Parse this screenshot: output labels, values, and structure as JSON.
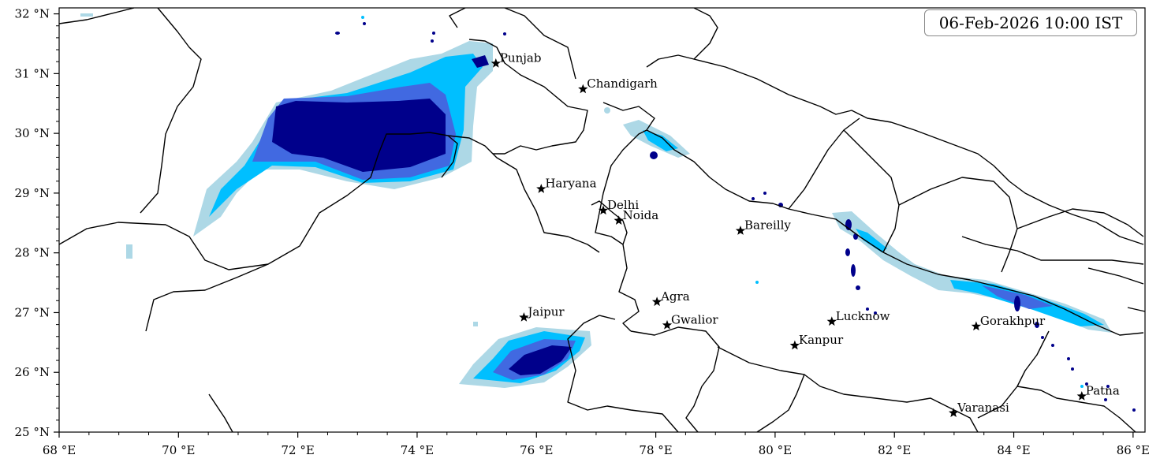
{
  "timestamp": "06-Feb-2026 10:00 IST",
  "axes": {
    "x_ticks": [
      "68 °E",
      "70 °E",
      "72 °E",
      "74 °E",
      "76 °E",
      "78 °E",
      "80 °E",
      "82 °E",
      "84 °E",
      "86 °E"
    ],
    "y_ticks": [
      "32 °N",
      "31 °N",
      "30 °N",
      "29 °N",
      "28 °N",
      "27 °N",
      "26 °N",
      "25 °N"
    ],
    "lon_range": [
      68,
      86.2
    ],
    "lat_range": [
      25,
      32.1
    ]
  },
  "cities": [
    {
      "name": "Punjab",
      "lon": 75.32,
      "lat": 31.17
    },
    {
      "name": "Chandigarh",
      "lon": 76.78,
      "lat": 30.74
    },
    {
      "name": "Haryana",
      "lon": 76.08,
      "lat": 29.07
    },
    {
      "name": "Delhi",
      "lon": 77.12,
      "lat": 28.71
    },
    {
      "name": "Noida",
      "lon": 77.38,
      "lat": 28.54
    },
    {
      "name": "Bareilly",
      "lon": 79.42,
      "lat": 28.37
    },
    {
      "name": "Jaipur",
      "lon": 75.79,
      "lat": 26.92
    },
    {
      "name": "Agra",
      "lon": 78.02,
      "lat": 27.18
    },
    {
      "name": "Gwalior",
      "lon": 78.19,
      "lat": 26.79
    },
    {
      "name": "Lucknow",
      "lon": 80.95,
      "lat": 26.85
    },
    {
      "name": "Kanpur",
      "lon": 80.33,
      "lat": 26.45
    },
    {
      "name": "Gorakhpur",
      "lon": 83.37,
      "lat": 26.77
    },
    {
      "name": "Varanasi",
      "lon": 82.99,
      "lat": 25.32
    },
    {
      "name": "Patna",
      "lon": 85.14,
      "lat": 25.6
    }
  ],
  "colors": {
    "level1": "#add8e6",
    "level2": "#00bfff",
    "level3": "#4169e1",
    "level4": "#00008b",
    "border": "#000000"
  }
}
